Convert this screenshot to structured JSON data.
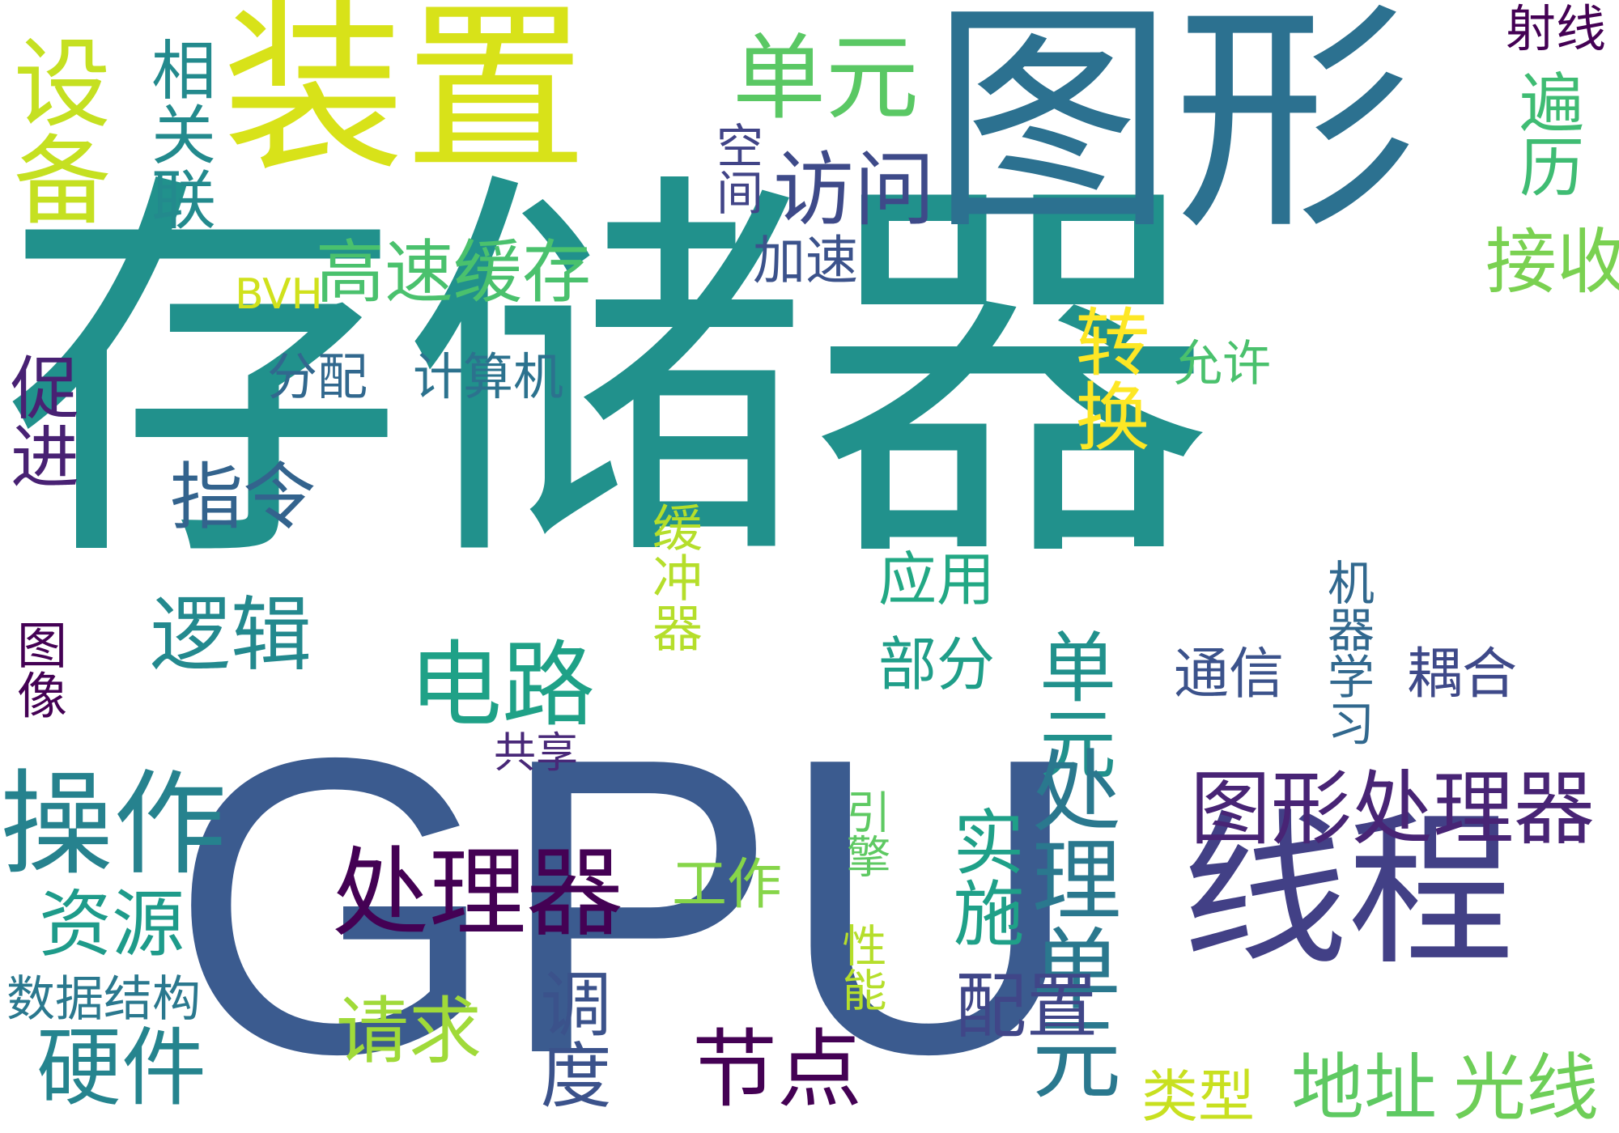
{
  "words": [
    {
      "text": "存储器",
      "color": "#21918c"
    },
    {
      "text": "GPU",
      "color": "#3b5b8f"
    },
    {
      "text": "图形",
      "color": "#2c7190"
    },
    {
      "text": "装置",
      "color": "#d8e219"
    },
    {
      "text": "线程",
      "color": "#424086"
    },
    {
      "text": "设备",
      "color": "#c5e021"
    },
    {
      "text": "相关联",
      "color": "#238a8d"
    },
    {
      "text": "单元",
      "color": "#5ac864"
    },
    {
      "text": "访问",
      "color": "#3e4a89"
    },
    {
      "text": "高速缓存",
      "color": "#4ac16d"
    },
    {
      "text": "BVH",
      "color": "#d0e11c"
    },
    {
      "text": "空间",
      "color": "#414487"
    },
    {
      "text": "加速",
      "color": "#3b528b"
    },
    {
      "text": "射线",
      "color": "#440154"
    },
    {
      "text": "遍历",
      "color": "#3fbc73"
    },
    {
      "text": "接收",
      "color": "#7ad151"
    },
    {
      "text": "转换",
      "color": "#fde725"
    },
    {
      "text": "允许",
      "color": "#4ac16d"
    },
    {
      "text": "促进",
      "color": "#482173"
    },
    {
      "text": "分配",
      "color": "#31688e"
    },
    {
      "text": "计算机",
      "color": "#2c728e"
    },
    {
      "text": "指令",
      "color": "#33638d"
    },
    {
      "text": "逻辑",
      "color": "#23898e"
    },
    {
      "text": "电路",
      "color": "#1fa187"
    },
    {
      "text": "图像",
      "color": "#440154"
    },
    {
      "text": "操作",
      "color": "#26828e"
    },
    {
      "text": "处理器",
      "color": "#440154"
    },
    {
      "text": "资源",
      "color": "#1e9b8a"
    },
    {
      "text": "数据结构",
      "color": "#2a788e"
    },
    {
      "text": "硬件",
      "color": "#25848e"
    },
    {
      "text": "缓冲器",
      "color": "#b5de2b"
    },
    {
      "text": "共享",
      "color": "#482878"
    },
    {
      "text": "应用",
      "color": "#22a884"
    },
    {
      "text": "部分",
      "color": "#1f9e89"
    },
    {
      "text": "单元",
      "color": "#21918c"
    },
    {
      "text": "处理单元",
      "color": "#2a788e"
    },
    {
      "text": "实施",
      "color": "#1fa088"
    },
    {
      "text": "图形处理器",
      "color": "#482475"
    },
    {
      "text": "机器学习",
      "color": "#31688e"
    },
    {
      "text": "通信",
      "color": "#3b528b"
    },
    {
      "text": "耦合",
      "color": "#3e4989"
    },
    {
      "text": "工作",
      "color": "#86d549"
    },
    {
      "text": "性能",
      "color": "#b5de2b"
    },
    {
      "text": "引擎",
      "color": "#5ec962"
    },
    {
      "text": "请求",
      "color": "#a0da39"
    },
    {
      "text": "调度",
      "color": "#3b528b"
    },
    {
      "text": "配置",
      "color": "#404688"
    },
    {
      "text": "节点",
      "color": "#440154"
    },
    {
      "text": "类型",
      "color": "#c8e020"
    },
    {
      "text": "地址",
      "color": "#5ec962"
    },
    {
      "text": "光线",
      "color": "#6ece58"
    }
  ]
}
